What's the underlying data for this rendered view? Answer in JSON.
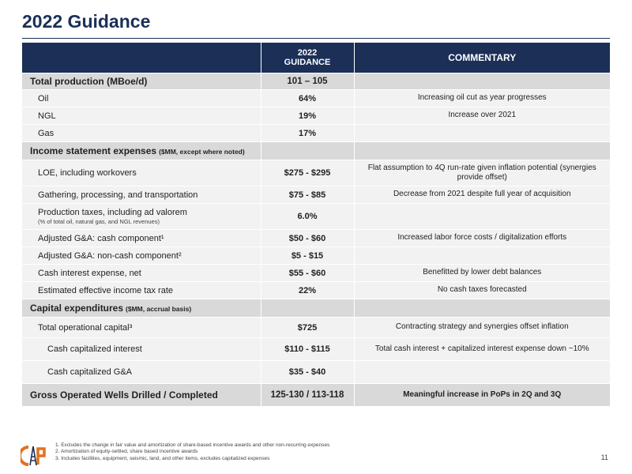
{
  "page": {
    "title": "2022 Guidance",
    "page_number": "11"
  },
  "table": {
    "headers": {
      "item": "",
      "guidance_line1": "2022",
      "guidance_line2": "GUIDANCE",
      "commentary": "COMMENTARY"
    },
    "rows": [
      {
        "type": "section",
        "label": "Total production (MBoe/d)",
        "qualifier": "",
        "value": "101 – 105",
        "comment": ""
      },
      {
        "type": "item",
        "indent": 1,
        "label": "Oil",
        "value": "64%",
        "comment": "Increasing oil cut as year progresses"
      },
      {
        "type": "item",
        "indent": 1,
        "label": "NGL",
        "value": "19%",
        "comment": "Increase over 2021"
      },
      {
        "type": "item",
        "indent": 1,
        "label": "Gas",
        "value": "17%",
        "comment": ""
      },
      {
        "type": "section",
        "label": "Income statement expenses",
        "qualifier": "($MM, except where noted)",
        "value": "",
        "comment": ""
      },
      {
        "type": "item",
        "indent": 1,
        "label": "LOE, including workovers",
        "value": "$275 - $295",
        "comment": "Flat assumption to 4Q run-rate given inflation potential (synergies provide offset)"
      },
      {
        "type": "item",
        "indent": 1,
        "label": "Gathering, processing, and transportation",
        "value": "$75 - $85",
        "comment": "Decrease from 2021 despite full year of acquisition"
      },
      {
        "type": "item",
        "indent": 1,
        "label": "Production taxes, including ad valorem",
        "sublabel": "(% of total oil, natural gas, and NGL revenues)",
        "value": "6.0%",
        "comment": ""
      },
      {
        "type": "item",
        "indent": 1,
        "label": "Adjusted G&A: cash component¹",
        "value": "$50 - $60",
        "comment": "Increased labor force costs / digitalization efforts"
      },
      {
        "type": "item",
        "indent": 1,
        "label": "Adjusted G&A: non-cash component²",
        "value": "$5 - $15",
        "comment": ""
      },
      {
        "type": "item",
        "indent": 1,
        "label": "Cash interest expense, net",
        "value": "$55 - $60",
        "comment": "Benefitted by lower debt balances"
      },
      {
        "type": "item",
        "indent": 1,
        "label": "Estimated effective income tax rate",
        "value": "22%",
        "comment": "No cash taxes forecasted"
      },
      {
        "type": "section",
        "label": "Capital expenditures",
        "qualifier": "($MM, accrual basis)",
        "value": "",
        "comment": ""
      },
      {
        "type": "item",
        "indent": 1,
        "label": "Total operational capital³",
        "value": "$725",
        "comment": "Contracting strategy and synergies offset inflation"
      },
      {
        "type": "item",
        "indent": 2,
        "label": "Cash capitalized interest",
        "value": "$110 - $115",
        "comment": "Total cash interest + capitalized interest expense down ~10%"
      },
      {
        "type": "item",
        "indent": 2,
        "label": "Cash capitalized G&A",
        "value": "$35 - $40",
        "comment": ""
      },
      {
        "type": "section",
        "label": "Gross Operated Wells Drilled / Completed",
        "qualifier": "",
        "value": "125-130 / 113-118",
        "comment": "Meaningful increase in PoPs in 2Q and 3Q"
      }
    ]
  },
  "footnotes": [
    "1.  Excludes the change in fair value and amortization of share-based incentive awards and other non-recurring expenses",
    "2.  Amortization of equity-settled, share based incentive awards",
    "3.  Includes facilities, equipment, seismic, land, and other items, excludes capitalized expenses"
  ],
  "colors": {
    "header_bg": "#1b2f57",
    "section_bg": "#d9d9d9",
    "row_bg": "#f2f2f2",
    "logo_orange": "#e2711d"
  }
}
